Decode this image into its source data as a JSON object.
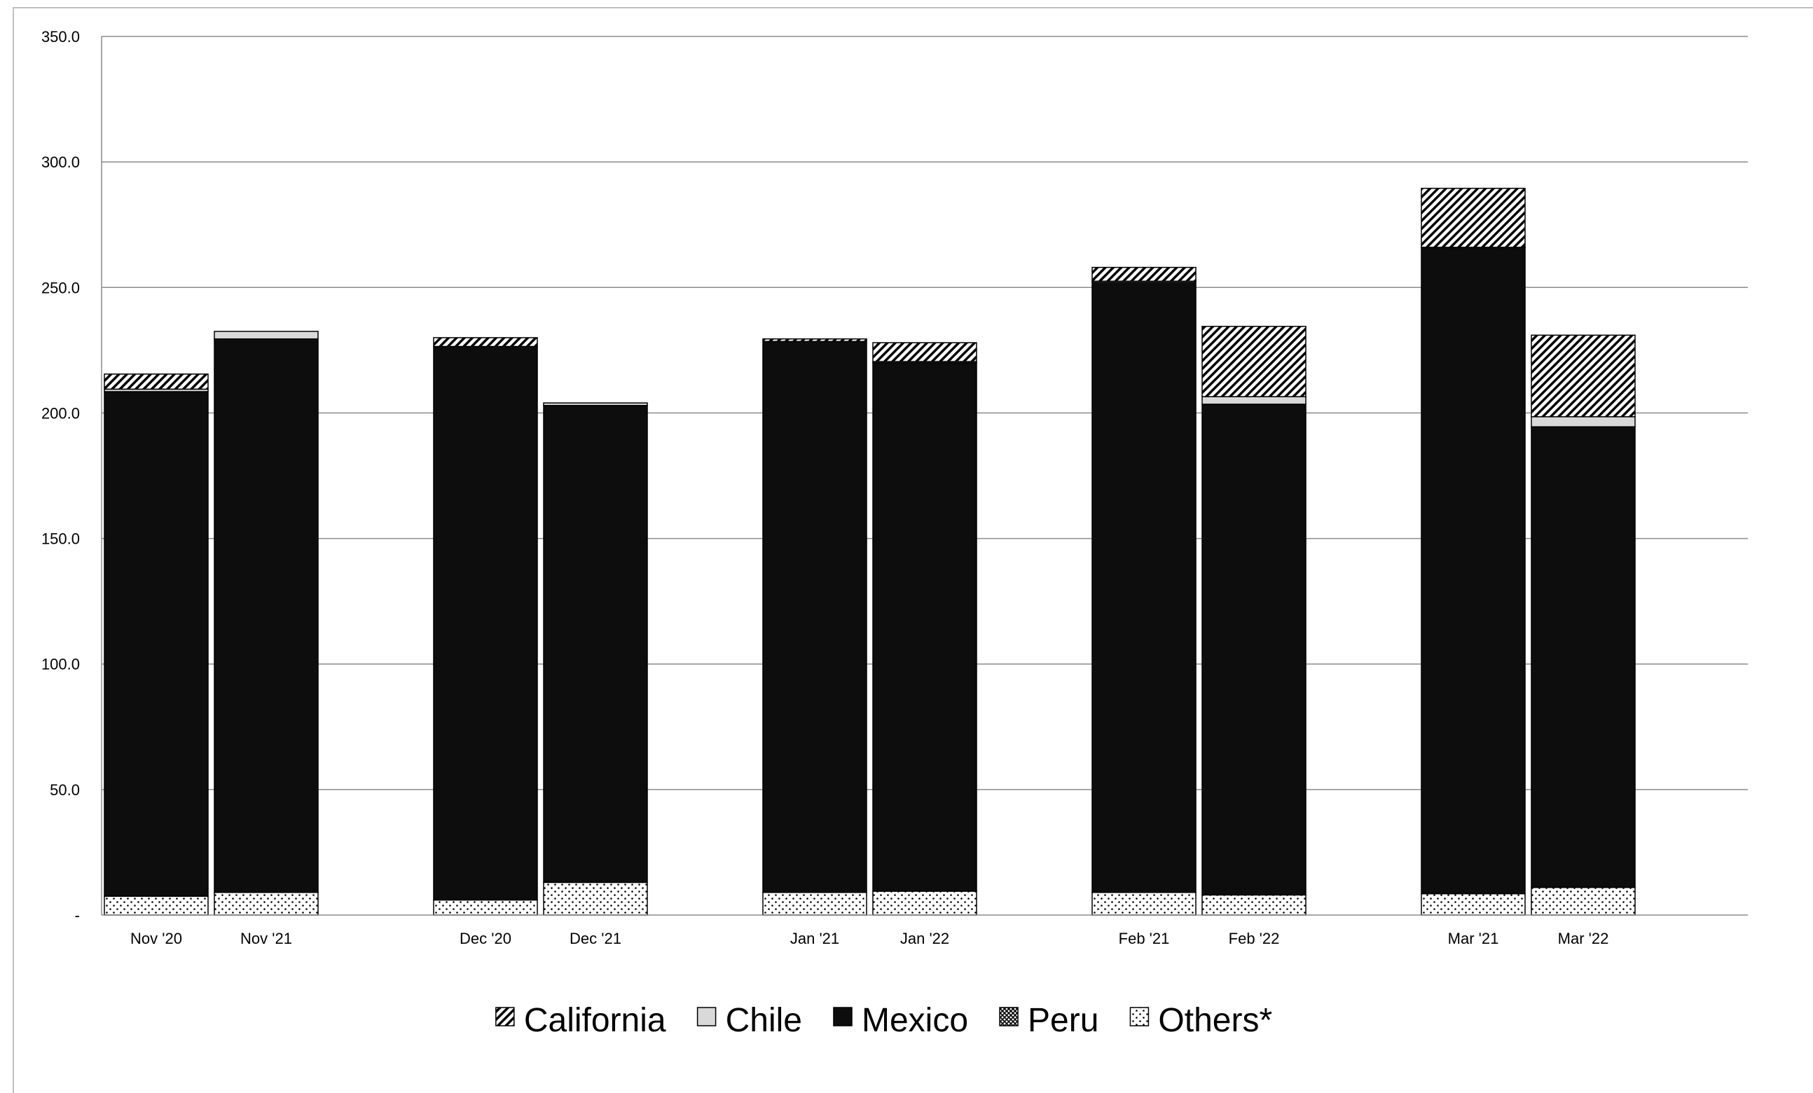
{
  "chart_data": {
    "type": "bar",
    "stacked": true,
    "categories": [
      "Nov '20",
      "Nov '21",
      "Dec '20",
      "Dec '21",
      "Jan '21",
      "Jan '22",
      "Feb '21",
      "Feb '22",
      "Mar '21",
      "Mar '22"
    ],
    "series": [
      {
        "name": "Others*",
        "pattern": "dots",
        "values": [
          7.5,
          9.0,
          6.0,
          13.0,
          9.0,
          9.5,
          9.0,
          8.0,
          8.5,
          11.0
        ]
      },
      {
        "name": "Mexico",
        "pattern": "solid",
        "values": [
          201.0,
          220.5,
          220.5,
          190.0,
          219.5,
          210.5,
          243.0,
          195.5,
          257.5,
          183.5
        ]
      },
      {
        "name": "Peru",
        "pattern": "crosshatch",
        "values": [
          0,
          0,
          0,
          0,
          0,
          0,
          0,
          0,
          0,
          0
        ]
      },
      {
        "name": "Chile",
        "pattern": "light",
        "values": [
          1.0,
          3.0,
          0,
          1.0,
          0,
          0.5,
          0.5,
          3.0,
          0,
          4.0
        ]
      },
      {
        "name": "California",
        "pattern": "diagonal",
        "values": [
          6.0,
          0,
          3.5,
          0,
          1.0,
          7.5,
          5.5,
          28.0,
          23.5,
          32.5
        ]
      }
    ],
    "legend_order": [
      "California",
      "Chile",
      "Mexico",
      "Peru",
      "Others*"
    ],
    "ylim": [
      0,
      350
    ],
    "yticks": [
      0,
      50,
      100,
      150,
      200,
      250,
      300,
      350
    ],
    "ytick_labels": [
      "-",
      "50.0",
      "100.0",
      "150.0",
      "200.0",
      "250.0",
      "300.0",
      "350.0"
    ],
    "title": "",
    "xlabel": "",
    "ylabel": "",
    "grid": true,
    "legend_position": "bottom"
  }
}
